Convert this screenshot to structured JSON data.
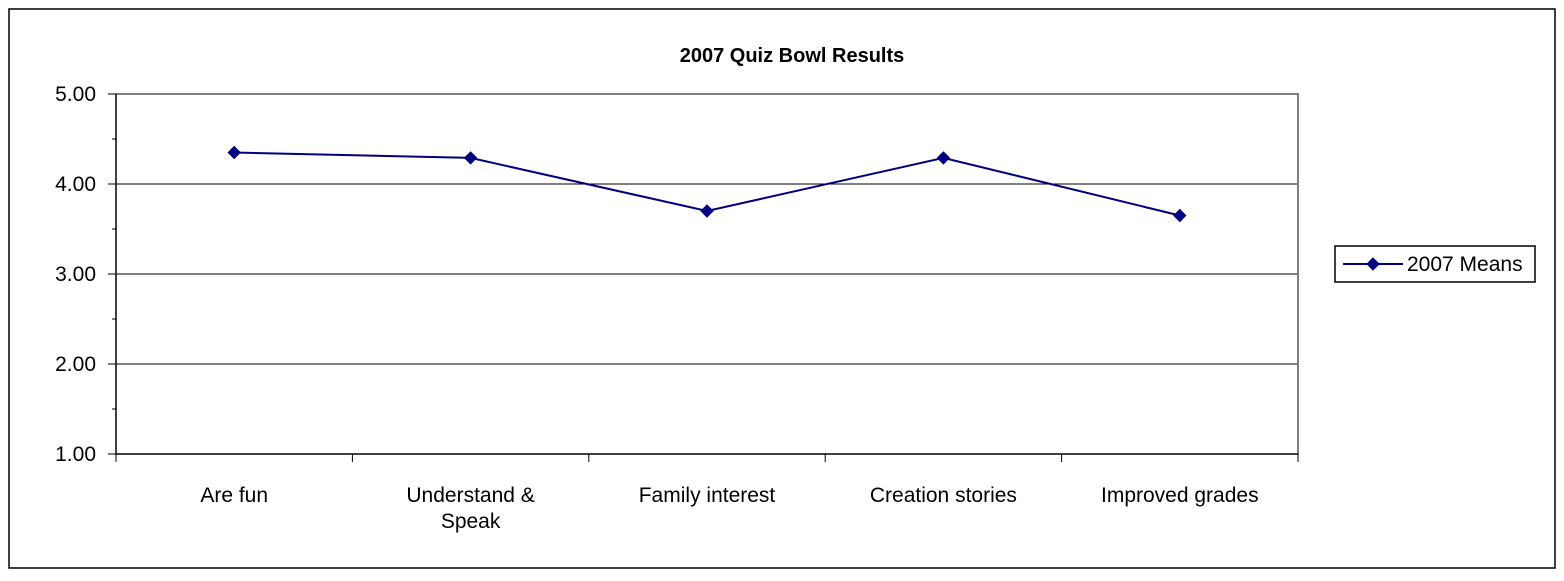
{
  "chart_data": {
    "type": "line",
    "title": "2007 Quiz Bowl Results",
    "xlabel": "",
    "ylabel": "",
    "categories": [
      [
        "Are fun"
      ],
      [
        "Understand &",
        "Speak"
      ],
      [
        "Family interest"
      ],
      [
        "Creation stories"
      ],
      [
        "Improved grades"
      ]
    ],
    "series": [
      {
        "name": "2007 Means",
        "values": [
          4.35,
          4.29,
          3.7,
          4.29,
          3.65
        ],
        "color": "#000080",
        "marker": "diamond"
      }
    ],
    "ylim": [
      1.0,
      5.0
    ],
    "yticks": [
      "1.00",
      "2.00",
      "3.00",
      "4.00",
      "5.00"
    ],
    "grid": true,
    "legend_placement": "right"
  }
}
